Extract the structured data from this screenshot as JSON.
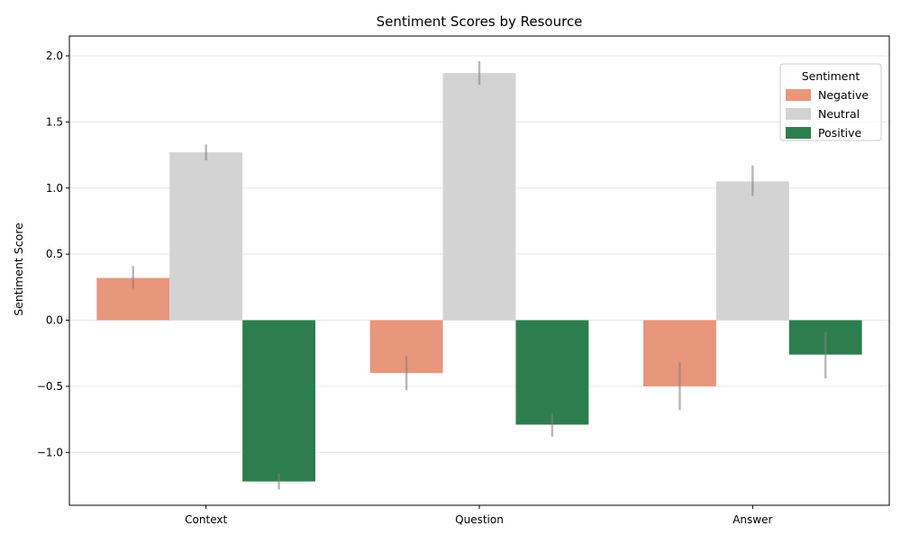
{
  "chart_data": {
    "type": "bar",
    "title": "Sentiment Scores by Resource",
    "xlabel": "",
    "ylabel": "Sentiment Score",
    "categories": [
      "Context",
      "Question",
      "Answer"
    ],
    "ylim": [
      -1.4,
      2.15
    ],
    "yticks": [
      -1.0,
      -0.5,
      0.0,
      0.5,
      1.0,
      1.5,
      2.0
    ],
    "ytick_labels": [
      "−1.0",
      "−0.5",
      "0.0",
      "0.5",
      "1.0",
      "1.5",
      "2.0"
    ],
    "grid": "horizontal",
    "legend": {
      "title": "Sentiment",
      "placement": "top-right"
    },
    "series": [
      {
        "name": "Negative",
        "color": "#e8967c",
        "values": [
          0.32,
          -0.4,
          -0.5
        ],
        "err_low": [
          0.24,
          -0.53,
          -0.68
        ],
        "err_high": [
          0.41,
          -0.27,
          -0.32
        ]
      },
      {
        "name": "Neutral",
        "color": "#d3d3d3",
        "values": [
          1.27,
          1.87,
          1.05
        ],
        "err_low": [
          1.21,
          1.78,
          0.94
        ],
        "err_high": [
          1.33,
          1.96,
          1.17
        ]
      },
      {
        "name": "Positive",
        "color": "#2e7d4f",
        "values": [
          -1.22,
          -0.79,
          -0.26
        ],
        "err_low": [
          -1.28,
          -0.88,
          -0.44
        ],
        "err_high": [
          -1.16,
          -0.7,
          -0.09
        ]
      }
    ]
  }
}
